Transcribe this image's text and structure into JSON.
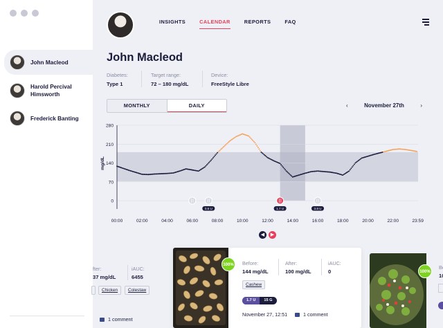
{
  "sidebar": {
    "patients": [
      {
        "name": "John Macleod",
        "active": true
      },
      {
        "name": "Harold Percival Himsworth",
        "active": false
      },
      {
        "name": "Frederick Banting",
        "active": false
      }
    ]
  },
  "nav": {
    "items": [
      "INSIGHTS",
      "CALENDAR",
      "REPORTS",
      "FAQ"
    ],
    "active": "CALENDAR"
  },
  "patient": {
    "name": "John Macleod",
    "diabetes_label": "Diabetes:",
    "diabetes_value": "Type 1",
    "target_label": "Target range:",
    "target_value": "72 – 180 mg/dL",
    "device_label": "Device:",
    "device_value": "FreeStyle Libre"
  },
  "view_toggle": {
    "monthly": "MONTHLY",
    "daily": "DAILY",
    "active": "DAILY"
  },
  "date_nav": {
    "prev": "‹",
    "date": "November 27th",
    "next": "›"
  },
  "colors": {
    "accent": "#e8405a",
    "line": "#1c1c3c",
    "high": "#f5a25d",
    "band": "#d3d5e0",
    "highlight": "#a9abbe"
  },
  "chart_data": {
    "type": "line",
    "ylabel": "mg/dL",
    "ylim": [
      0,
      280
    ],
    "yticks": [
      "280",
      "210",
      "140",
      "70",
      "0"
    ],
    "xticks": [
      "00:00",
      "02:00",
      "04:00",
      "06:00",
      "08:00",
      "10:00",
      "12:00",
      "14:00",
      "16:00",
      "18:00",
      "20:00",
      "22:00",
      "23:59"
    ],
    "target_range": [
      72,
      180
    ],
    "highlight_window_hours": [
      13.0,
      15.0
    ],
    "series": [
      {
        "x": [
          0,
          0.5,
          1,
          1.5,
          2,
          2.5,
          3,
          3.5,
          4,
          4.5,
          5,
          5.5,
          6,
          6.5,
          7,
          7.5,
          8,
          8.5,
          9,
          9.5,
          10,
          10.5,
          11,
          11.5,
          12,
          12.5,
          13,
          13.5,
          14,
          14.5,
          15,
          15.5,
          16,
          16.5,
          17,
          17.5,
          18,
          18.5,
          19,
          19.5,
          20,
          20.5,
          21,
          21.5,
          22,
          22.5,
          23,
          23.5,
          23.98
        ],
        "y": [
          128,
          120,
          112,
          105,
          98,
          97,
          99,
          100,
          101,
          103,
          110,
          118,
          114,
          110,
          125,
          150,
          178,
          200,
          222,
          238,
          248,
          240,
          215,
          180,
          160,
          148,
          138,
          110,
          88,
          95,
          102,
          108,
          110,
          108,
          106,
          102,
          95,
          110,
          140,
          158,
          165,
          172,
          178,
          184,
          190,
          192,
          190,
          186,
          182
        ]
      }
    ],
    "events": [
      {
        "hour": 6.0,
        "type": "meal"
      },
      {
        "hour": 7.3,
        "type": "meal",
        "insulin": "0.5 U"
      },
      {
        "hour": 13.0,
        "type": "meal-selected",
        "insulin": "1.7 U"
      },
      {
        "hour": 16.0,
        "type": "meal",
        "insulin": "3.8 U"
      }
    ]
  },
  "cards": {
    "left": {
      "after_label": "fter:",
      "after_value": "37 mg/dL",
      "iauc_label": "iAUC:",
      "iauc_value": "6455",
      "tags": [
        "Chicken",
        "Colestaw"
      ],
      "comment": "1 comment"
    },
    "center": {
      "badge": "100%",
      "before_label": "Before:",
      "before_value": "144 mg/dL",
      "after_label": "After:",
      "after_value": "100 mg/dL",
      "iauc_label": "iAUC:",
      "iauc_value": "0",
      "tag": "Cashew",
      "insulin": "1.7 U",
      "carbs": "15 G",
      "timestamp": "November 27, 12:51",
      "comment": "1 comment"
    },
    "right": {
      "badge": "100%",
      "before_label": "Be",
      "before_value": "10"
    }
  }
}
